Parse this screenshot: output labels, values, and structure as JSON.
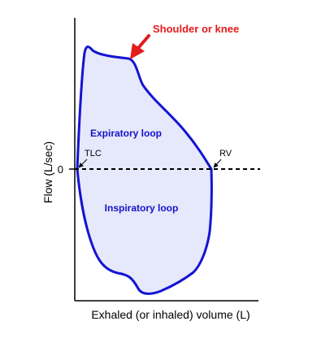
{
  "axes": {
    "y_label": "Flow (L/sec)",
    "x_label": "Exhaled (or inhaled) volume (L)",
    "zero_tick": "0"
  },
  "loops": {
    "expiratory_label": "Expiratory loop",
    "inspiratory_label": "Inspiratory loop"
  },
  "points": {
    "tlc": "TLC",
    "rv": "RV"
  },
  "annotation": {
    "shoulder": "Shoulder or knee"
  },
  "colors": {
    "loop_stroke": "#1414d2",
    "loop_fill": "#e6e8fb",
    "loop_text": "#1414c8",
    "annotation": "#e31b1b",
    "axis": "#000000"
  }
}
